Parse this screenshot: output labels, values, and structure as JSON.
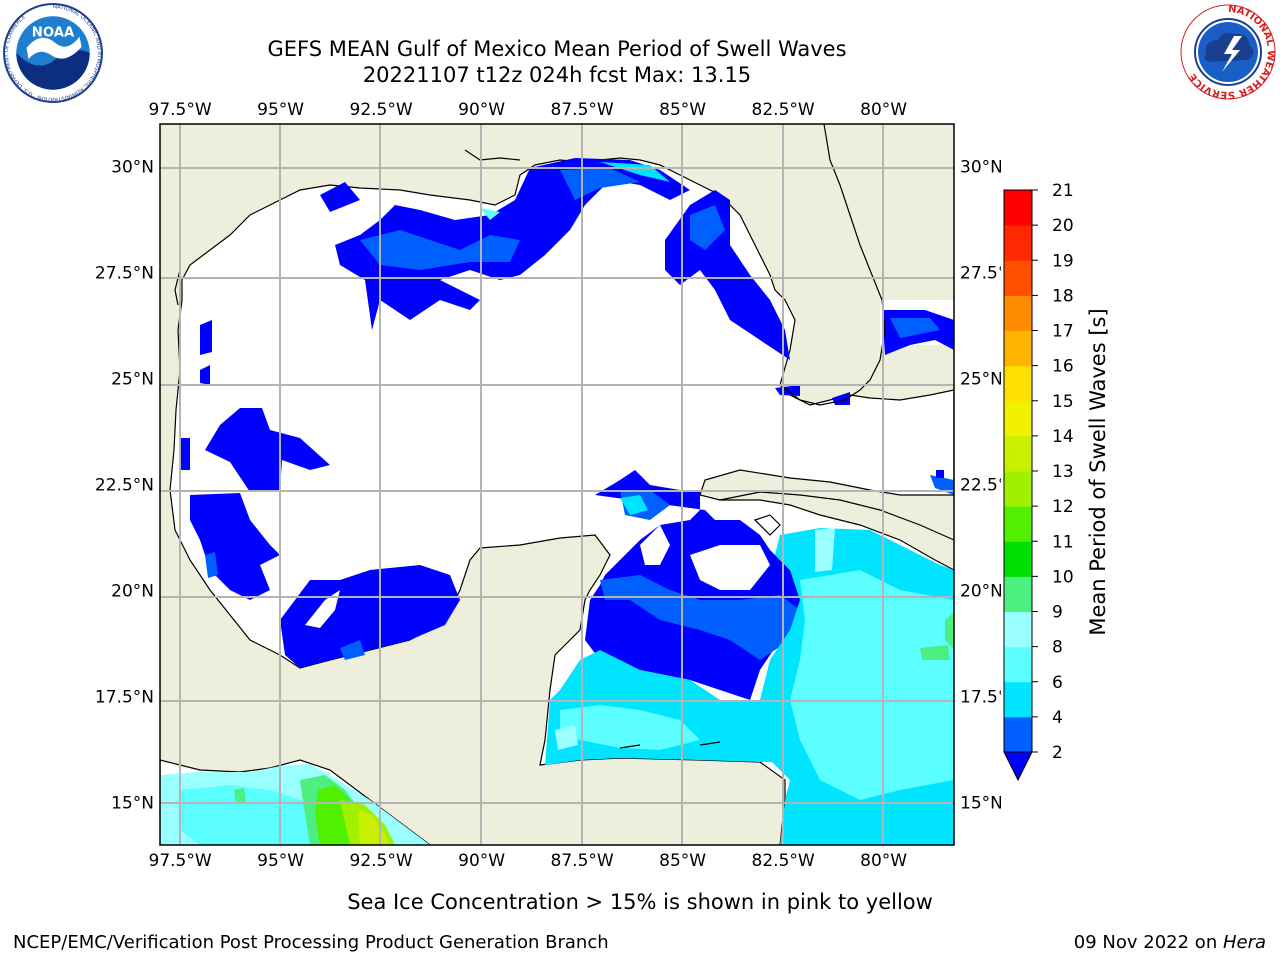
{
  "header": {
    "title_line1": "GEFS MEAN Gulf of Mexico Mean Period of Swell Waves",
    "title_line2": "20221107 t12z 024h fcst   Max: 13.15"
  },
  "logos": {
    "noaa": {
      "icon": "noaa-seal-icon",
      "text": "NOAA",
      "ring_text": "NATIONAL OCEANIC AND ATMOSPHERIC ADMINISTRATION · U.S. DEPARTMENT OF COMMERCE"
    },
    "nws": {
      "icon": "nws-seal-icon",
      "ring_text": "NATIONAL WEATHER SERVICE"
    }
  },
  "map": {
    "lon_range": [
      -98.0,
      -78.25
    ],
    "lat_range": [
      14.0,
      31.0
    ],
    "lon_ticks": [
      {
        "value": -97.5,
        "label": "97.5°W"
      },
      {
        "value": -95.0,
        "label": "95°W"
      },
      {
        "value": -92.5,
        "label": "92.5°W"
      },
      {
        "value": -90.0,
        "label": "90°W"
      },
      {
        "value": -87.5,
        "label": "87.5°W"
      },
      {
        "value": -85.0,
        "label": "85°W"
      },
      {
        "value": -82.5,
        "label": "82.5°W"
      },
      {
        "value": -80.0,
        "label": "80°W"
      }
    ],
    "lat_ticks": [
      {
        "value": 30.0,
        "label": "30°N"
      },
      {
        "value": 27.5,
        "label": "27.5°N"
      },
      {
        "value": 25.0,
        "label": "25°N"
      },
      {
        "value": 22.5,
        "label": "22.5°N"
      },
      {
        "value": 20.0,
        "label": "20°N"
      },
      {
        "value": 17.5,
        "label": "17.5°N"
      },
      {
        "value": 15.0,
        "label": "15°N"
      }
    ],
    "gridlines": true,
    "colors": {
      "land": "#eeeedc",
      "coast": "#000000",
      "grid": "#b4b4b4"
    }
  },
  "colorbar": {
    "label": "Mean Period of Swell Waves [s]",
    "levels": [
      2,
      4,
      6,
      8,
      9,
      10,
      11,
      12,
      13,
      14,
      15,
      16,
      17,
      18,
      19,
      20,
      21
    ],
    "tick_labels": [
      "2",
      "4",
      "6",
      "8",
      "9",
      "10",
      "11",
      "12",
      "13",
      "14",
      "15",
      "16",
      "17",
      "18",
      "19",
      "20",
      "21"
    ],
    "colors": [
      "#0060ff",
      "#00e4ff",
      "#5cffff",
      "#9affff",
      "#4cf080",
      "#00e000",
      "#50f000",
      "#a0f000",
      "#c8f000",
      "#f0f000",
      "#ffe000",
      "#ffb400",
      "#ff8c00",
      "#ff5000",
      "#ff2800",
      "#ff0000"
    ],
    "under_color": "#0000ff",
    "extend": "min"
  },
  "footer": {
    "note": "Sea Ice Concentration > 15% is shown in pink to yellow",
    "left": "NCEP/EMC/Verification Post Processing Product Generation Branch",
    "right_date": "09 Nov 2022 on ",
    "right_host": "Hera"
  }
}
